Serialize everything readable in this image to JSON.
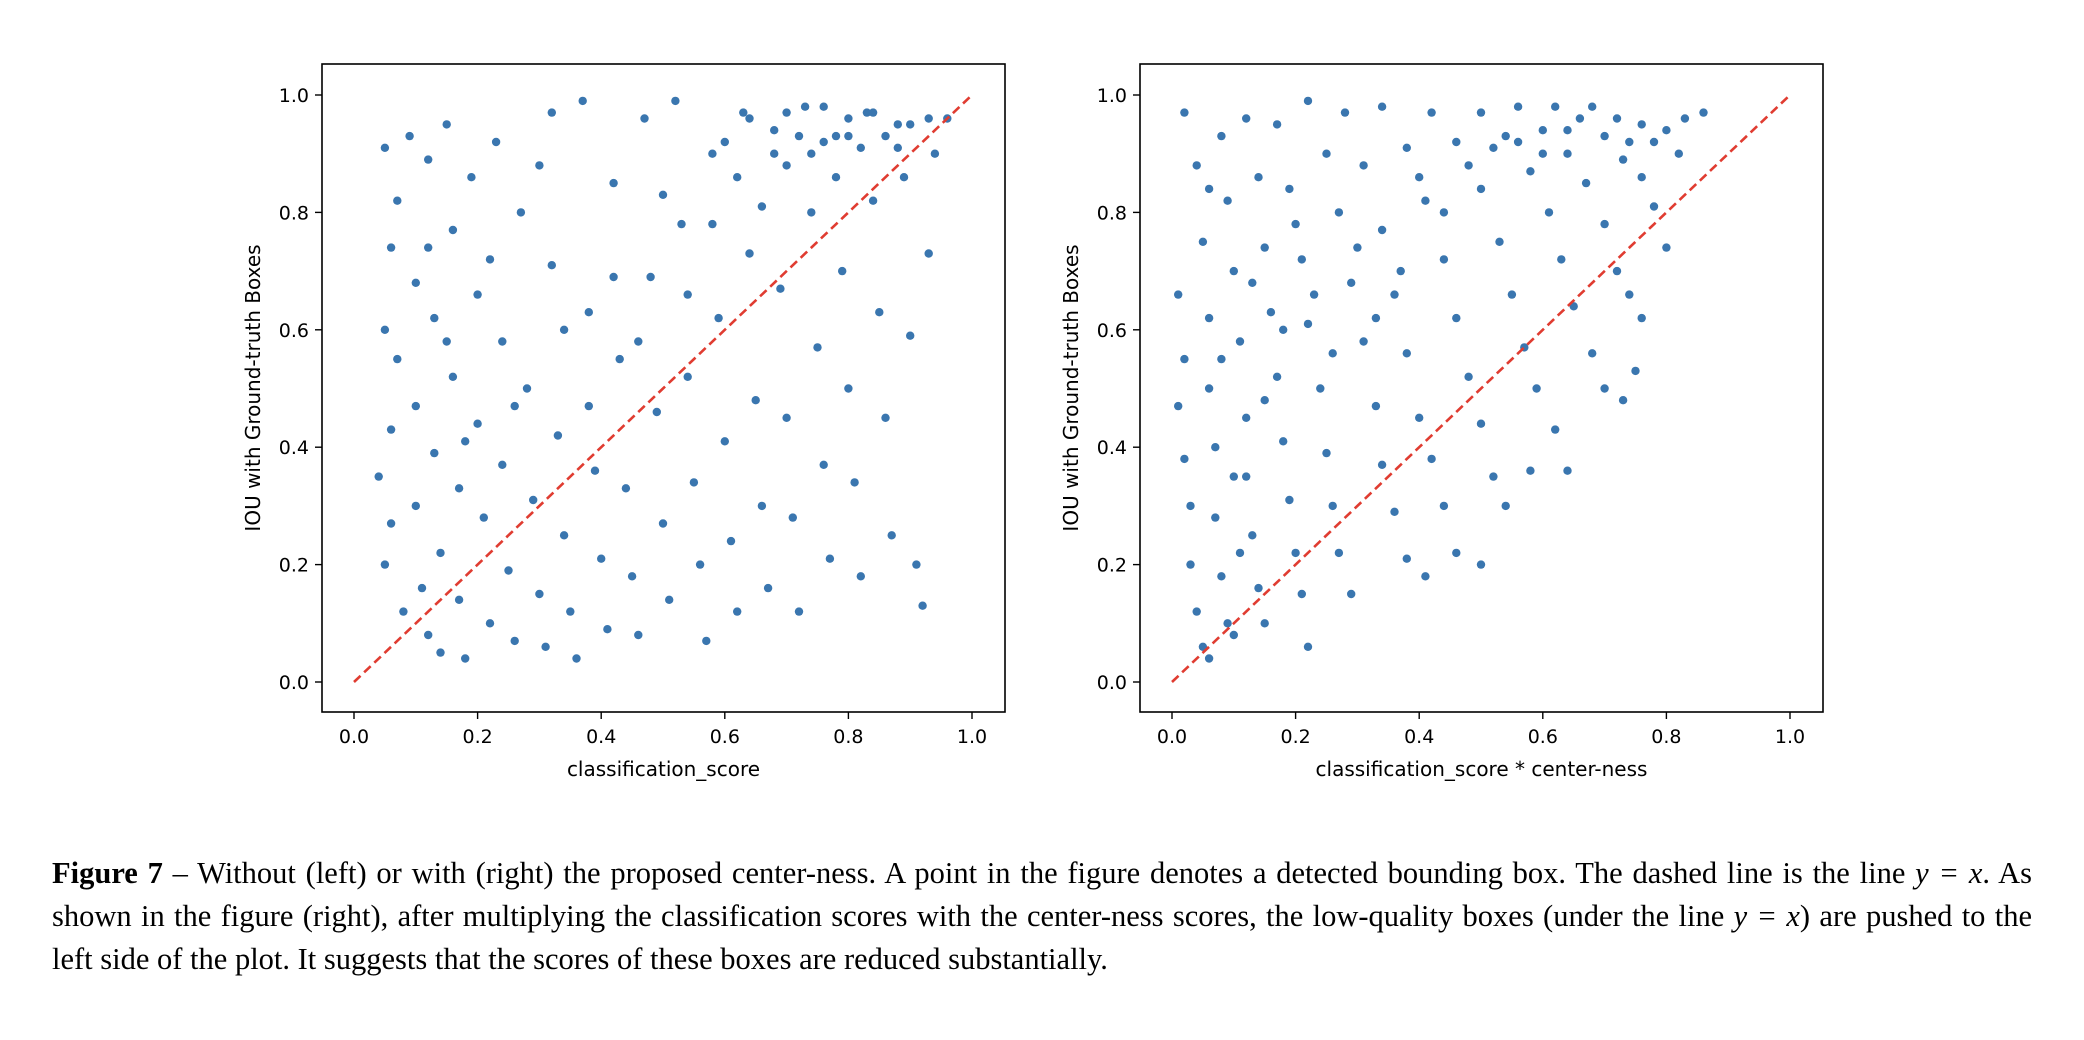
{
  "chart_data": [
    {
      "type": "scatter",
      "name": "left",
      "xlabel": "classification_score",
      "ylabel": "IOU with Ground-truth Boxes",
      "xlim": [
        0.0,
        1.0
      ],
      "ylim": [
        0.0,
        1.0
      ],
      "xticks": [
        "0.0",
        "0.2",
        "0.4",
        "0.6",
        "0.8",
        "1.0"
      ],
      "yticks": [
        "0.0",
        "0.2",
        "0.4",
        "0.6",
        "0.8",
        "1.0"
      ],
      "point_color": "#3a76af",
      "reference_line": {
        "style": "dashed",
        "color": "#e03c31",
        "points": [
          [
            0.0,
            0.0
          ],
          [
            1.0,
            1.0
          ]
        ]
      },
      "grid": false,
      "points": [
        [
          0.05,
          0.91
        ],
        [
          0.06,
          0.74
        ],
        [
          0.05,
          0.6
        ],
        [
          0.06,
          0.43
        ],
        [
          0.04,
          0.35
        ],
        [
          0.06,
          0.27
        ],
        [
          0.05,
          0.2
        ],
        [
          0.08,
          0.12
        ],
        [
          0.07,
          0.82
        ],
        [
          0.07,
          0.55
        ],
        [
          0.09,
          0.93
        ],
        [
          0.1,
          0.68
        ],
        [
          0.1,
          0.47
        ],
        [
          0.1,
          0.3
        ],
        [
          0.11,
          0.16
        ],
        [
          0.12,
          0.08
        ],
        [
          0.12,
          0.89
        ],
        [
          0.13,
          0.62
        ],
        [
          0.13,
          0.39
        ],
        [
          0.14,
          0.22
        ],
        [
          0.14,
          0.05
        ],
        [
          0.15,
          0.95
        ],
        [
          0.16,
          0.77
        ],
        [
          0.16,
          0.52
        ],
        [
          0.17,
          0.33
        ],
        [
          0.17,
          0.14
        ],
        [
          0.18,
          0.04
        ],
        [
          0.19,
          0.86
        ],
        [
          0.2,
          0.66
        ],
        [
          0.2,
          0.44
        ],
        [
          0.21,
          0.28
        ],
        [
          0.22,
          0.1
        ],
        [
          0.23,
          0.92
        ],
        [
          0.24,
          0.58
        ],
        [
          0.24,
          0.37
        ],
        [
          0.25,
          0.19
        ],
        [
          0.26,
          0.07
        ],
        [
          0.27,
          0.8
        ],
        [
          0.28,
          0.5
        ],
        [
          0.29,
          0.31
        ],
        [
          0.3,
          0.15
        ],
        [
          0.31,
          0.06
        ],
        [
          0.32,
          0.97
        ],
        [
          0.32,
          0.71
        ],
        [
          0.33,
          0.42
        ],
        [
          0.34,
          0.25
        ],
        [
          0.35,
          0.12
        ],
        [
          0.36,
          0.04
        ],
        [
          0.37,
          0.99
        ],
        [
          0.38,
          0.63
        ],
        [
          0.39,
          0.36
        ],
        [
          0.4,
          0.21
        ],
        [
          0.41,
          0.09
        ],
        [
          0.42,
          0.85
        ],
        [
          0.43,
          0.55
        ],
        [
          0.44,
          0.33
        ],
        [
          0.45,
          0.18
        ],
        [
          0.46,
          0.08
        ],
        [
          0.47,
          0.96
        ],
        [
          0.48,
          0.69
        ],
        [
          0.49,
          0.46
        ],
        [
          0.5,
          0.27
        ],
        [
          0.51,
          0.14
        ],
        [
          0.52,
          0.99
        ],
        [
          0.53,
          0.78
        ],
        [
          0.54,
          0.52
        ],
        [
          0.55,
          0.34
        ],
        [
          0.56,
          0.2
        ],
        [
          0.57,
          0.07
        ],
        [
          0.58,
          0.9
        ],
        [
          0.59,
          0.62
        ],
        [
          0.6,
          0.41
        ],
        [
          0.61,
          0.24
        ],
        [
          0.62,
          0.12
        ],
        [
          0.63,
          0.97
        ],
        [
          0.64,
          0.73
        ],
        [
          0.65,
          0.48
        ],
        [
          0.66,
          0.3
        ],
        [
          0.67,
          0.16
        ],
        [
          0.68,
          0.94
        ],
        [
          0.69,
          0.67
        ],
        [
          0.7,
          0.45
        ],
        [
          0.71,
          0.28
        ],
        [
          0.72,
          0.12
        ],
        [
          0.73,
          0.98
        ],
        [
          0.74,
          0.8
        ],
        [
          0.75,
          0.57
        ],
        [
          0.76,
          0.37
        ],
        [
          0.77,
          0.21
        ],
        [
          0.78,
          0.93
        ],
        [
          0.79,
          0.7
        ],
        [
          0.8,
          0.5
        ],
        [
          0.81,
          0.34
        ],
        [
          0.82,
          0.18
        ],
        [
          0.83,
          0.97
        ],
        [
          0.84,
          0.82
        ],
        [
          0.85,
          0.63
        ],
        [
          0.86,
          0.45
        ],
        [
          0.87,
          0.25
        ],
        [
          0.88,
          0.95
        ],
        [
          0.89,
          0.86
        ],
        [
          0.9,
          0.59
        ],
        [
          0.91,
          0.2
        ],
        [
          0.92,
          0.13
        ],
        [
          0.93,
          0.96
        ],
        [
          0.93,
          0.73
        ],
        [
          0.94,
          0.9
        ],
        [
          0.96,
          0.96
        ],
        [
          0.12,
          0.74
        ],
        [
          0.15,
          0.58
        ],
        [
          0.18,
          0.41
        ],
        [
          0.22,
          0.72
        ],
        [
          0.26,
          0.47
        ],
        [
          0.3,
          0.88
        ],
        [
          0.34,
          0.6
        ],
        [
          0.38,
          0.47
        ],
        [
          0.42,
          0.69
        ],
        [
          0.46,
          0.58
        ],
        [
          0.5,
          0.83
        ],
        [
          0.54,
          0.66
        ],
        [
          0.58,
          0.78
        ],
        [
          0.62,
          0.86
        ],
        [
          0.66,
          0.81
        ],
        [
          0.7,
          0.88
        ],
        [
          0.74,
          0.9
        ],
        [
          0.78,
          0.86
        ],
        [
          0.82,
          0.91
        ],
        [
          0.86,
          0.93
        ],
        [
          0.9,
          0.95
        ],
        [
          0.64,
          0.96
        ],
        [
          0.7,
          0.97
        ],
        [
          0.76,
          0.98
        ],
        [
          0.8,
          0.96
        ],
        [
          0.84,
          0.97
        ],
        [
          0.72,
          0.93
        ],
        [
          0.8,
          0.93
        ],
        [
          0.88,
          0.91
        ],
        [
          0.68,
          0.9
        ],
        [
          0.76,
          0.92
        ],
        [
          0.6,
          0.92
        ]
      ]
    },
    {
      "type": "scatter",
      "name": "right",
      "xlabel": "classification_score * center-ness",
      "ylabel": "IOU with Ground-truth Boxes",
      "xlim": [
        0.0,
        1.0
      ],
      "ylim": [
        0.0,
        1.0
      ],
      "xticks": [
        "0.0",
        "0.2",
        "0.4",
        "0.6",
        "0.8",
        "1.0"
      ],
      "yticks": [
        "0.0",
        "0.2",
        "0.4",
        "0.6",
        "0.8",
        "1.0"
      ],
      "point_color": "#3a76af",
      "reference_line": {
        "style": "dashed",
        "color": "#e03c31",
        "points": [
          [
            0.0,
            0.0
          ],
          [
            1.0,
            1.0
          ]
        ]
      },
      "grid": false,
      "points": [
        [
          0.02,
          0.97
        ],
        [
          0.01,
          0.66
        ],
        [
          0.02,
          0.55
        ],
        [
          0.01,
          0.47
        ],
        [
          0.02,
          0.38
        ],
        [
          0.03,
          0.3
        ],
        [
          0.03,
          0.2
        ],
        [
          0.04,
          0.12
        ],
        [
          0.05,
          0.06
        ],
        [
          0.06,
          0.04
        ],
        [
          0.04,
          0.88
        ],
        [
          0.05,
          0.75
        ],
        [
          0.06,
          0.62
        ],
        [
          0.06,
          0.5
        ],
        [
          0.07,
          0.4
        ],
        [
          0.07,
          0.28
        ],
        [
          0.08,
          0.18
        ],
        [
          0.09,
          0.1
        ],
        [
          0.1,
          0.08
        ],
        [
          0.08,
          0.93
        ],
        [
          0.09,
          0.82
        ],
        [
          0.1,
          0.7
        ],
        [
          0.11,
          0.58
        ],
        [
          0.12,
          0.45
        ],
        [
          0.12,
          0.35
        ],
        [
          0.13,
          0.25
        ],
        [
          0.14,
          0.16
        ],
        [
          0.15,
          0.1
        ],
        [
          0.12,
          0.96
        ],
        [
          0.14,
          0.86
        ],
        [
          0.15,
          0.74
        ],
        [
          0.16,
          0.63
        ],
        [
          0.17,
          0.52
        ],
        [
          0.18,
          0.41
        ],
        [
          0.19,
          0.31
        ],
        [
          0.2,
          0.22
        ],
        [
          0.21,
          0.15
        ],
        [
          0.22,
          0.06
        ],
        [
          0.17,
          0.95
        ],
        [
          0.19,
          0.84
        ],
        [
          0.21,
          0.72
        ],
        [
          0.22,
          0.61
        ],
        [
          0.24,
          0.5
        ],
        [
          0.25,
          0.39
        ],
        [
          0.26,
          0.3
        ],
        [
          0.27,
          0.22
        ],
        [
          0.29,
          0.15
        ],
        [
          0.22,
          0.99
        ],
        [
          0.25,
          0.9
        ],
        [
          0.27,
          0.8
        ],
        [
          0.29,
          0.68
        ],
        [
          0.31,
          0.58
        ],
        [
          0.33,
          0.47
        ],
        [
          0.34,
          0.37
        ],
        [
          0.36,
          0.29
        ],
        [
          0.38,
          0.21
        ],
        [
          0.41,
          0.18
        ],
        [
          0.28,
          0.97
        ],
        [
          0.31,
          0.88
        ],
        [
          0.34,
          0.77
        ],
        [
          0.36,
          0.66
        ],
        [
          0.38,
          0.56
        ],
        [
          0.4,
          0.45
        ],
        [
          0.42,
          0.38
        ],
        [
          0.44,
          0.3
        ],
        [
          0.46,
          0.22
        ],
        [
          0.5,
          0.2
        ],
        [
          0.34,
          0.98
        ],
        [
          0.38,
          0.91
        ],
        [
          0.41,
          0.82
        ],
        [
          0.44,
          0.72
        ],
        [
          0.46,
          0.62
        ],
        [
          0.48,
          0.52
        ],
        [
          0.5,
          0.44
        ],
        [
          0.52,
          0.35
        ],
        [
          0.54,
          0.3
        ],
        [
          0.58,
          0.36
        ],
        [
          0.42,
          0.97
        ],
        [
          0.46,
          0.92
        ],
        [
          0.5,
          0.84
        ],
        [
          0.53,
          0.75
        ],
        [
          0.55,
          0.66
        ],
        [
          0.57,
          0.57
        ],
        [
          0.59,
          0.5
        ],
        [
          0.62,
          0.43
        ],
        [
          0.64,
          0.36
        ],
        [
          0.5,
          0.97
        ],
        [
          0.54,
          0.93
        ],
        [
          0.58,
          0.87
        ],
        [
          0.61,
          0.8
        ],
        [
          0.63,
          0.72
        ],
        [
          0.65,
          0.64
        ],
        [
          0.68,
          0.56
        ],
        [
          0.7,
          0.5
        ],
        [
          0.73,
          0.48
        ],
        [
          0.56,
          0.98
        ],
        [
          0.6,
          0.94
        ],
        [
          0.64,
          0.9
        ],
        [
          0.67,
          0.85
        ],
        [
          0.7,
          0.78
        ],
        [
          0.72,
          0.7
        ],
        [
          0.74,
          0.66
        ],
        [
          0.76,
          0.62
        ],
        [
          0.75,
          0.53
        ],
        [
          0.62,
          0.98
        ],
        [
          0.66,
          0.96
        ],
        [
          0.7,
          0.93
        ],
        [
          0.73,
          0.89
        ],
        [
          0.76,
          0.86
        ],
        [
          0.78,
          0.81
        ],
        [
          0.8,
          0.74
        ],
        [
          0.68,
          0.98
        ],
        [
          0.72,
          0.96
        ],
        [
          0.76,
          0.95
        ],
        [
          0.8,
          0.94
        ],
        [
          0.83,
          0.96
        ],
        [
          0.86,
          0.97
        ],
        [
          0.78,
          0.92
        ],
        [
          0.82,
          0.9
        ],
        [
          0.74,
          0.92
        ],
        [
          0.06,
          0.84
        ],
        [
          0.08,
          0.55
        ],
        [
          0.1,
          0.35
        ],
        [
          0.11,
          0.22
        ],
        [
          0.13,
          0.68
        ],
        [
          0.15,
          0.48
        ],
        [
          0.18,
          0.6
        ],
        [
          0.2,
          0.78
        ],
        [
          0.23,
          0.66
        ],
        [
          0.26,
          0.56
        ],
        [
          0.3,
          0.74
        ],
        [
          0.33,
          0.62
        ],
        [
          0.37,
          0.7
        ],
        [
          0.4,
          0.86
        ],
        [
          0.44,
          0.8
        ],
        [
          0.48,
          0.88
        ],
        [
          0.52,
          0.91
        ],
        [
          0.56,
          0.92
        ],
        [
          0.6,
          0.9
        ],
        [
          0.64,
          0.94
        ]
      ]
    }
  ],
  "caption": {
    "label": "Figure 7",
    "text_1": " – Without (left) or with (right) the proposed center-ness. A point in the figure denotes a detected bounding box. The dashed line is the line ",
    "math_1": "y = x",
    "text_2": ". As shown in the figure (right), after multiplying the classification scores with the center-ness scores, the low-quality boxes (under the line ",
    "math_2": "y = x",
    "text_3": ") are pushed to the left side of the plot. It suggests that the scores of these boxes are reduced substantially."
  }
}
